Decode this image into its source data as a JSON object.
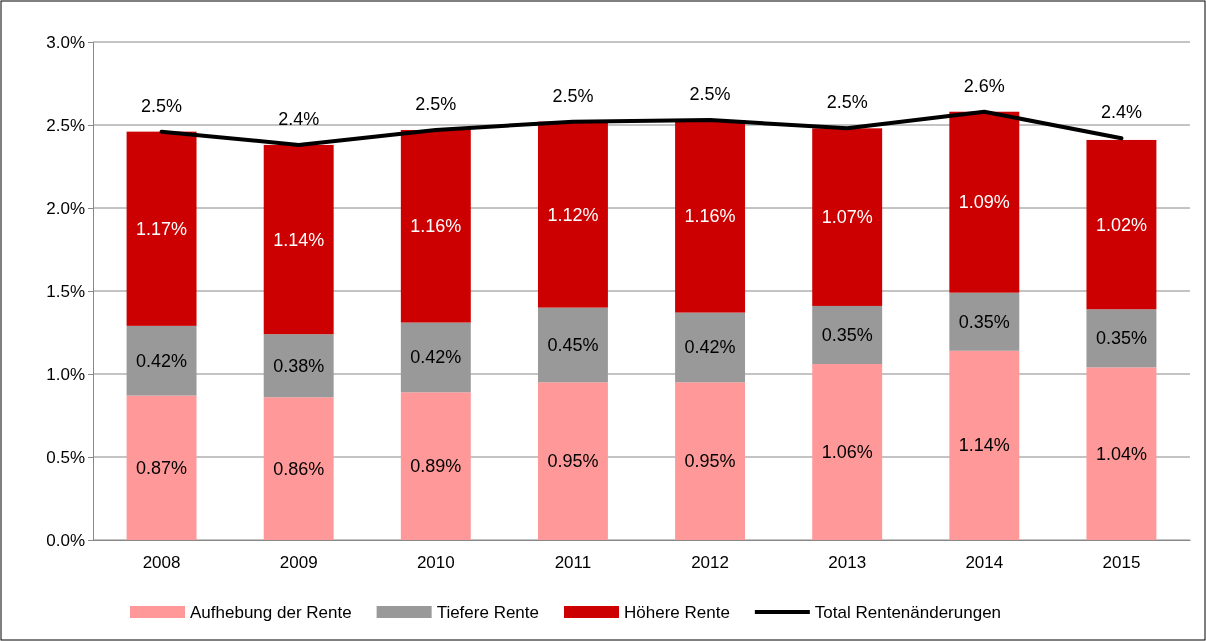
{
  "chart_data": {
    "type": "bar",
    "stacked": true,
    "categories": [
      "2008",
      "2009",
      "2010",
      "2011",
      "2012",
      "2013",
      "2014",
      "2015"
    ],
    "series": [
      {
        "name": "Aufhebung der Rente",
        "color": "#ff9999",
        "values": [
          0.87,
          0.86,
          0.89,
          0.95,
          0.95,
          1.06,
          1.14,
          1.04
        ],
        "value_labels": [
          "0.87%",
          "0.86%",
          "0.89%",
          "0.95%",
          "0.95%",
          "1.06%",
          "1.14%",
          "1.04%"
        ]
      },
      {
        "name": "Tiefere Rente",
        "color": "#999999",
        "values": [
          0.42,
          0.38,
          0.42,
          0.45,
          0.42,
          0.35,
          0.35,
          0.35
        ],
        "value_labels": [
          "0.42%",
          "0.38%",
          "0.42%",
          "0.45%",
          "0.42%",
          "0.35%",
          "0.35%",
          "0.35%"
        ]
      },
      {
        "name": "Höhere Rente",
        "color": "#cc0000",
        "values": [
          1.17,
          1.14,
          1.16,
          1.12,
          1.16,
          1.07,
          1.09,
          1.02
        ],
        "value_labels": [
          "1.17%",
          "1.14%",
          "1.16%",
          "1.12%",
          "1.16%",
          "1.07%",
          "1.09%",
          "1.02%"
        ]
      },
      {
        "name": "Total Rentenänderungen",
        "type": "line",
        "color": "#000000",
        "values": [
          2.46,
          2.38,
          2.47,
          2.52,
          2.53,
          2.48,
          2.58,
          2.42
        ],
        "value_labels": [
          "2.5%",
          "2.4%",
          "2.5%",
          "2.5%",
          "2.5%",
          "2.5%",
          "2.6%",
          "2.4%"
        ]
      }
    ],
    "ylim": [
      0,
      3
    ],
    "yticks": [
      {
        "value": 0,
        "label": "0.0%"
      },
      {
        "value": 0.5,
        "label": "0.5%"
      },
      {
        "value": 1,
        "label": "1.0%"
      },
      {
        "value": 1.5,
        "label": "1.5%"
      },
      {
        "value": 2,
        "label": "2.0%"
      },
      {
        "value": 2.5,
        "label": "2.5%"
      },
      {
        "value": 3,
        "label": "3.0%"
      }
    ],
    "grid": "y",
    "legend": "bottom",
    "marker": "none",
    "line_style": "solid"
  }
}
